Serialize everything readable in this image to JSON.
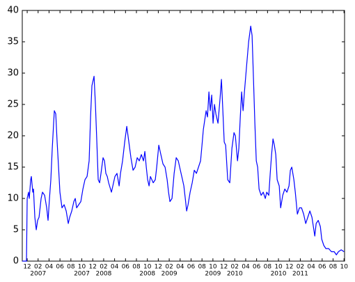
{
  "chart_data": {
    "type": "line",
    "series": [
      {
        "color": "#0000ff",
        "x": [
          -0.89,
          -0.13,
          0,
          0.25,
          0.38,
          0.64,
          0.76,
          1.02,
          1.15,
          1.4,
          1.66,
          1.91,
          2.17,
          2.55,
          2.8,
          3.19,
          3.57,
          3.82,
          4.08,
          4.33,
          4.59,
          4.84,
          4.97,
          5.23,
          5.48,
          5.74,
          5.99,
          6.37,
          6.76,
          7.14,
          7.52,
          7.78,
          8.16,
          8.54,
          8.8,
          9.05,
          9.43,
          9.82,
          10.2,
          10.58,
          10.96,
          11.34,
          11.6,
          11.85,
          12.24,
          12.49,
          12.75,
          13.0,
          13.26,
          13.51,
          13.89,
          14.15,
          14.4,
          14.66,
          14.91,
          15.42,
          15.68,
          16.06,
          16.44,
          16.83,
          17.08,
          17.46,
          17.85,
          18.23,
          18.61,
          18.99,
          19.38,
          19.76,
          20.14,
          20.52,
          20.9,
          21.29,
          21.54,
          21.8,
          22.05,
          22.31,
          22.56,
          23.07,
          23.45,
          23.71,
          24.09,
          24.47,
          24.86,
          25.24,
          25.62,
          25.88,
          26.13,
          26.51,
          26.9,
          27.28,
          27.66,
          28.04,
          28.43,
          28.68,
          28.94,
          29.19,
          29.45,
          29.83,
          30.21,
          30.59,
          30.98,
          31.36,
          31.74,
          32.0,
          32.25,
          32.5,
          32.76,
          33.01,
          33.27,
          33.52,
          33.78,
          34.03,
          34.29,
          34.54,
          34.93,
          35.31,
          35.56,
          35.82,
          36.07,
          36.33,
          36.71,
          37.09,
          37.48,
          37.86,
          38.11,
          38.5,
          38.75,
          39.01,
          39.26,
          39.52,
          39.77,
          40.15,
          40.54,
          40.92,
          41.17,
          41.43,
          41.68,
          41.94,
          42.19,
          42.45,
          42.83,
          43.21,
          43.59,
          43.85,
          44.23,
          44.49,
          44.74,
          45.0,
          45.25,
          45.51,
          45.76,
          46.14,
          46.4,
          46.78,
          47.16,
          47.55,
          47.93,
          48.18,
          48.44,
          48.82,
          49.08,
          49.46,
          49.84,
          50.22,
          50.61,
          50.99,
          51.37,
          51.75,
          52.13,
          52.39,
          52.65,
          52.9,
          53.28,
          53.67,
          53.92,
          54.3,
          54.68,
          55.19,
          55.7,
          56.21,
          56.6,
          56.98,
          57.49,
          58.0
        ],
        "values": [
          0,
          0,
          10,
          11,
          10,
          13,
          13.5,
          11,
          11.5,
          7,
          5,
          6.5,
          7,
          10,
          11,
          10.5,
          8.5,
          6.5,
          10,
          13,
          18,
          22,
          24,
          23.5,
          19,
          15,
          11,
          8.5,
          9,
          8,
          6,
          7,
          8,
          9.5,
          10,
          8.5,
          9,
          9.5,
          11.5,
          13,
          13.5,
          16,
          23,
          28,
          29.5,
          25,
          19,
          13,
          12.5,
          14,
          16.5,
          16,
          14,
          13.5,
          12.5,
          11,
          12,
          13.5,
          14,
          12,
          14,
          16,
          19,
          21.5,
          19,
          16.5,
          14.5,
          15,
          16.5,
          16,
          17,
          16,
          17.5,
          15,
          13,
          12,
          13.5,
          12.5,
          13,
          15,
          18.5,
          17,
          15.5,
          15,
          13,
          11,
          9.5,
          10,
          14,
          16.5,
          16,
          14.5,
          13,
          12,
          10,
          8,
          9,
          11,
          12.5,
          14.5,
          14,
          15,
          16,
          18.5,
          21,
          22.5,
          24,
          23,
          27,
          24,
          26.5,
          22,
          25,
          23.5,
          22,
          26,
          29,
          24,
          19,
          18.5,
          13,
          12.5,
          18,
          20.5,
          20,
          16,
          18,
          23,
          27,
          24,
          27,
          31,
          35,
          37.5,
          36,
          29,
          22,
          16,
          15,
          11.5,
          10.5,
          11,
          10,
          11,
          10.5,
          14,
          17,
          19.5,
          18.5,
          17,
          13,
          12,
          8.5,
          10.5,
          11.5,
          11,
          12,
          14.5,
          15,
          13,
          11,
          7.5,
          8.5,
          8.5,
          7.5,
          6,
          7,
          8,
          7,
          5.5,
          4,
          6,
          6.5,
          5.5,
          3.5,
          2.5,
          2,
          2,
          1.5,
          1.5,
          1,
          1.5,
          1.8,
          1.5
        ]
      }
    ],
    "xlim": [
      -0.9,
      58.1
    ],
    "xticks": [
      {
        "value": 0,
        "label": "12"
      },
      {
        "value": 2,
        "label": "02",
        "year": "2007"
      },
      {
        "value": 4,
        "label": "04"
      },
      {
        "value": 6,
        "label": "06"
      },
      {
        "value": 8,
        "label": "08"
      },
      {
        "value": 10,
        "label": "10",
        "year": "2007"
      },
      {
        "value": 12,
        "label": "12"
      },
      {
        "value": 14,
        "label": "02",
        "year": "2008"
      },
      {
        "value": 16,
        "label": "04"
      },
      {
        "value": 18,
        "label": "06"
      },
      {
        "value": 20,
        "label": "08"
      },
      {
        "value": 22,
        "label": "10",
        "year": "2008"
      },
      {
        "value": 24,
        "label": "12"
      },
      {
        "value": 26,
        "label": "02",
        "year": "2009"
      },
      {
        "value": 28,
        "label": "04"
      },
      {
        "value": 30,
        "label": "06"
      },
      {
        "value": 32,
        "label": "08"
      },
      {
        "value": 34,
        "label": "10",
        "year": "2009"
      },
      {
        "value": 36,
        "label": "12"
      },
      {
        "value": 38,
        "label": "02",
        "year": "2010"
      },
      {
        "value": 40,
        "label": "04"
      },
      {
        "value": 42,
        "label": "06"
      },
      {
        "value": 44,
        "label": "08"
      },
      {
        "value": 46,
        "label": "10",
        "year": "2010"
      },
      {
        "value": 48,
        "label": "12"
      },
      {
        "value": 50,
        "label": "02",
        "year": "2011"
      },
      {
        "value": 52,
        "label": "04"
      },
      {
        "value": 54,
        "label": "06"
      },
      {
        "value": 56,
        "label": "08"
      },
      {
        "value": 58,
        "label": "10"
      }
    ],
    "ylim": [
      0,
      40
    ],
    "yticks": [
      0,
      5,
      10,
      15,
      20,
      25,
      30,
      35,
      40
    ]
  }
}
